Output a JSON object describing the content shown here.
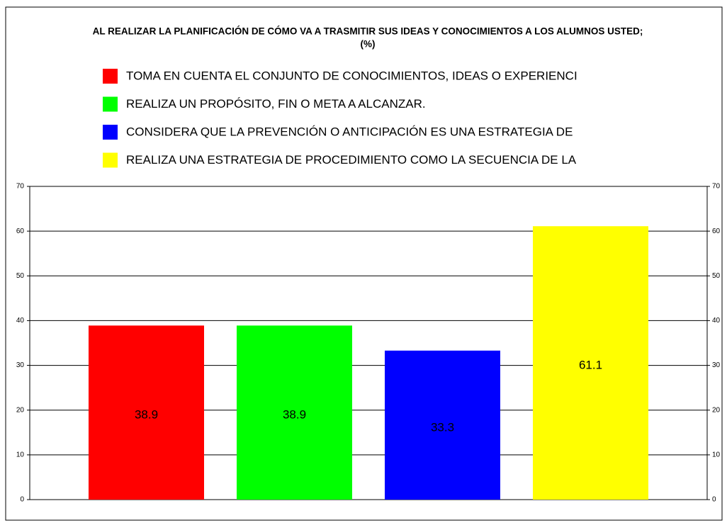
{
  "chart_data": {
    "type": "bar",
    "title": "AL REALIZAR LA PLANIFICACIÓN DE CÓMO VA A TRASMITIR SUS IDEAS Y CONOCIMIENTOS A LOS ALUMNOS USTED;",
    "subtitle": "(%)",
    "categories": [
      null
    ],
    "series": [
      {
        "name": "TOMA EN CUENTA EL CONJUNTO DE CONOCIMIENTOS, IDEAS O EXPERIENCI",
        "color": "#ff0000",
        "values": [
          38.9
        ]
      },
      {
        "name": "REALIZA UN PROPÓSITO, FIN O META A ALCANZAR.",
        "color": "#00ff00",
        "values": [
          38.9
        ]
      },
      {
        "name": "CONSIDERA QUE LA PREVENCIÓN O ANTICIPACIÓN ES UNA ESTRATEGIA DE",
        "color": "#0000ff",
        "values": [
          33.3
        ]
      },
      {
        "name": "REALIZA UNA ESTRATEGIA DE PROCEDIMIENTO COMO LA SECUENCIA DE LA",
        "color": "#ffff00",
        "values": [
          61.1
        ]
      }
    ],
    "ylim": [
      0,
      70
    ],
    "yticks": [
      0,
      10,
      20,
      30,
      40,
      50,
      60,
      70
    ],
    "y2lim": [
      0,
      70
    ],
    "y2ticks": [
      0,
      10,
      20,
      30,
      40,
      50,
      60,
      70
    ],
    "grid": true
  }
}
